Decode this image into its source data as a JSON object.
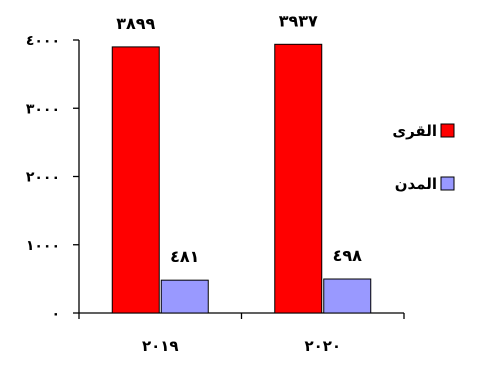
{
  "chart_data": {
    "type": "bar",
    "categories": [
      "٢٠١٩",
      "٢٠٢٠"
    ],
    "series": [
      {
        "name": "القرى",
        "values": [
          3899,
          3937
        ],
        "labels": [
          "٣٨٩٩",
          "٣٩٣٧"
        ],
        "color": "#ff0000"
      },
      {
        "name": "المدن",
        "values": [
          481,
          498
        ],
        "labels": [
          "٤٨١",
          "٤٩٨"
        ],
        "color": "#9999ff"
      }
    ],
    "y_ticks": [
      0,
      1000,
      2000,
      3000,
      4000
    ],
    "y_tick_labels": [
      "٠",
      "١٠٠٠",
      "٢٠٠٠",
      "٣٠٠٠",
      "٤٠٠٠"
    ],
    "ylim": [
      0,
      4000
    ],
    "title": "",
    "xlabel": "",
    "ylabel": "",
    "grid": false,
    "legend_position": "right"
  }
}
